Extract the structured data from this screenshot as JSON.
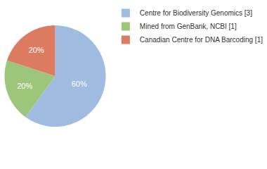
{
  "chart_data": {
    "type": "pie",
    "categories": [
      "Centre for Biodiversity Genomics [3]",
      "Mined from GenBank, NCBI [1]",
      "Canadian Centre for DNA Barcoding [1]"
    ],
    "values": [
      60,
      20,
      20
    ],
    "value_labels": [
      "60%",
      "20%",
      "20%"
    ],
    "colors": [
      "#a0bce0",
      "#9dc67a",
      "#dc7b5f"
    ],
    "data_labels": true,
    "legend": "top right"
  }
}
